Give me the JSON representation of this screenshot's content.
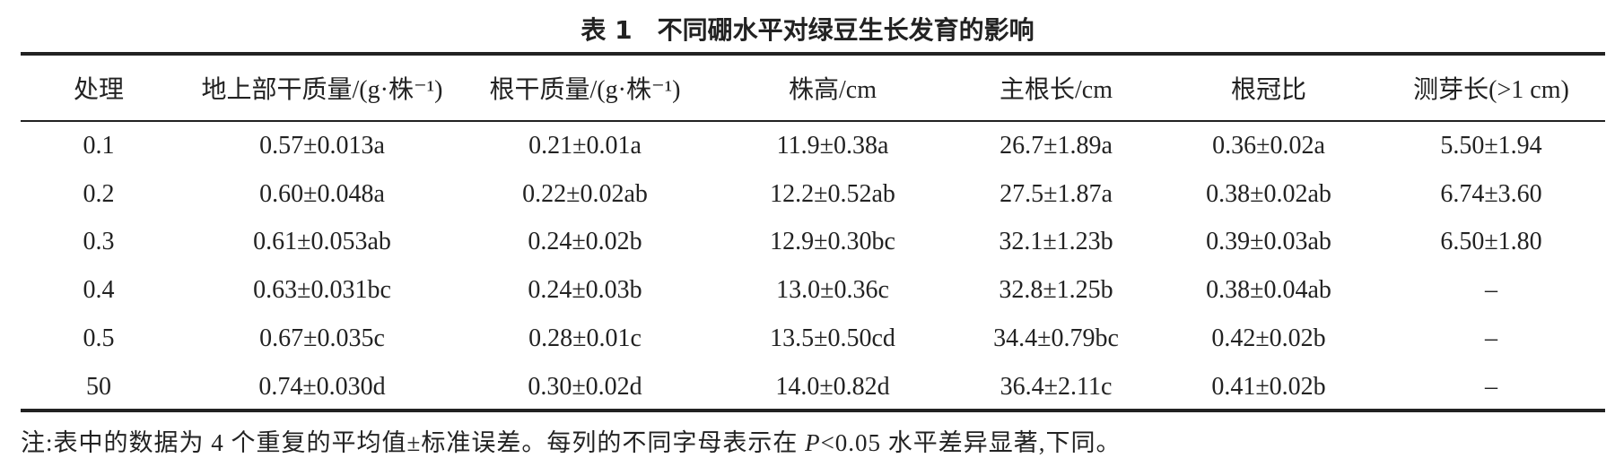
{
  "title": "表 1　不同硼水平对绿豆生长发育的影响",
  "table": {
    "header": [
      "处理",
      "地上部干质量/(g·株⁻¹)",
      "根干质量/(g·株⁻¹)",
      "株高/cm",
      "主根长/cm",
      "根冠比",
      "测芽长(>1 cm)"
    ],
    "rows": [
      [
        "0.1",
        "0.57±0.013a",
        "0.21±0.01a",
        "11.9±0.38a",
        "26.7±1.89a",
        "0.36±0.02a",
        "5.50±1.94"
      ],
      [
        "0.2",
        "0.60±0.048a",
        "0.22±0.02ab",
        "12.2±0.52ab",
        "27.5±1.87a",
        "0.38±0.02ab",
        "6.74±3.60"
      ],
      [
        "0.3",
        "0.61±0.053ab",
        "0.24±0.02b",
        "12.9±0.30bc",
        "32.1±1.23b",
        "0.39±0.03ab",
        "6.50±1.80"
      ],
      [
        "0.4",
        "0.63±0.031bc",
        "0.24±0.03b",
        "13.0±0.36c",
        "32.8±1.25b",
        "0.38±0.04ab",
        "–"
      ],
      [
        "0.5",
        "0.67±0.035c",
        "0.28±0.01c",
        "13.5±0.50cd",
        "34.4±0.79bc",
        "0.42±0.02b",
        "–"
      ],
      [
        "50",
        "0.74±0.030d",
        "0.30±0.02d",
        "14.0±0.82d",
        "36.4±2.11c",
        "0.41±0.02b",
        "–"
      ]
    ]
  },
  "note": [
    "注:表中的数据为 4 个重复的平均值±标准误差。每列的不同字母表示在 ",
    "P",
    "<0.05 水平差异显著,下同。"
  ]
}
